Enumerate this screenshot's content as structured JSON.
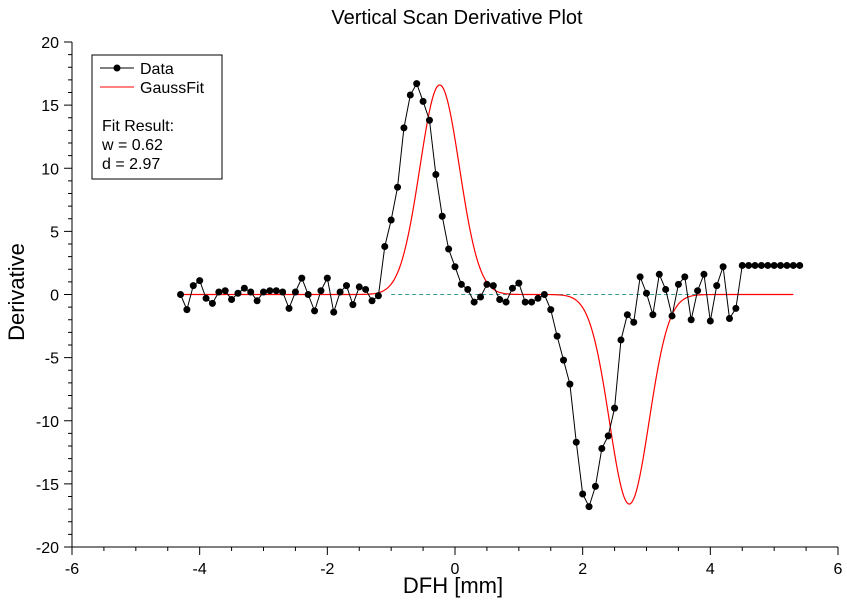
{
  "chart_data": {
    "type": "line",
    "title": "Vertical Scan Derivative Plot",
    "xlabel": "DFH [mm]",
    "ylabel": "Derivative",
    "xlim": [
      -6,
      6
    ],
    "ylim": [
      -20,
      20
    ],
    "xticks": [
      -6,
      -4,
      -2,
      0,
      2,
      4,
      6
    ],
    "yticks": [
      20,
      15,
      10,
      5,
      0,
      -5,
      -10,
      -15,
      -20
    ],
    "xtick_labels": [
      "-6",
      "-4",
      "-2",
      "0",
      "2",
      "4",
      "6"
    ],
    "ytick_labels": [
      "20",
      "15",
      "10",
      "5",
      "0",
      "-5",
      "-10",
      "-15",
      "-20"
    ],
    "grid": false,
    "legend_position": "top-left",
    "baseline": {
      "y": 0,
      "x_from": -1,
      "x_to": 5.3,
      "color": "#3a9a9a",
      "style": "dashed"
    },
    "series": [
      {
        "name": "Data",
        "color": "#000000",
        "marker": "circle",
        "x": [
          -4.3,
          -4.2,
          -4.1,
          -4.0,
          -3.9,
          -3.8,
          -3.7,
          -3.6,
          -3.5,
          -3.4,
          -3.3,
          -3.2,
          -3.1,
          -3.0,
          -2.9,
          -2.8,
          -2.7,
          -2.6,
          -2.5,
          -2.4,
          -2.3,
          -2.2,
          -2.1,
          -2.0,
          -1.9,
          -1.8,
          -1.7,
          -1.6,
          -1.5,
          -1.4,
          -1.3,
          -1.2,
          -1.1,
          -1.0,
          -0.9,
          -0.8,
          -0.7,
          -0.6,
          -0.5,
          -0.4,
          -0.3,
          -0.2,
          -0.1,
          0.0,
          0.1,
          0.2,
          0.3,
          0.4,
          0.5,
          0.6,
          0.7,
          0.8,
          0.9,
          1.0,
          1.1,
          1.2,
          1.3,
          1.4,
          1.5,
          1.6,
          1.7,
          1.8,
          1.9,
          2.0,
          2.1,
          2.2,
          2.3,
          2.4,
          2.5,
          2.6,
          2.7,
          2.8,
          2.9,
          3.0,
          3.1,
          3.2,
          3.3,
          3.4,
          3.5,
          3.6,
          3.7,
          3.8,
          3.9,
          4.0,
          4.1,
          4.2,
          4.3,
          4.4,
          4.5,
          4.6,
          4.7,
          4.8,
          4.9,
          5.0,
          5.1,
          5.2,
          5.3,
          5.4
        ],
        "y": [
          0.0,
          -1.2,
          0.7,
          1.1,
          -0.3,
          -0.7,
          0.2,
          0.3,
          -0.4,
          0.1,
          0.5,
          0.2,
          -0.5,
          0.2,
          0.3,
          0.3,
          0.2,
          -1.1,
          0.2,
          1.3,
          0.0,
          -1.3,
          0.3,
          1.3,
          -1.4,
          0.2,
          0.7,
          -0.8,
          0.6,
          0.4,
          -0.5,
          -0.1,
          3.8,
          5.9,
          8.5,
          13.2,
          15.8,
          16.7,
          15.3,
          13.8,
          9.5,
          6.2,
          3.6,
          2.2,
          0.8,
          0.4,
          -0.6,
          -0.2,
          0.8,
          0.7,
          -0.4,
          -0.6,
          0.5,
          0.9,
          -0.6,
          -0.6,
          -0.3,
          0.0,
          -1.2,
          -3.3,
          -5.2,
          -7.1,
          -11.7,
          -15.8,
          -16.8,
          -15.2,
          -12.2,
          -11.2,
          -9.0,
          -3.6,
          -1.6,
          -2.2,
          1.4,
          0.1,
          -1.6,
          1.6,
          0.4,
          -1.7,
          0.8,
          1.4,
          -2.0,
          0.3,
          1.6,
          -2.1,
          0.7,
          2.2,
          -1.9,
          -1.1,
          2.3,
          2.3,
          2.3,
          2.3,
          2.3,
          2.3,
          2.3,
          2.3,
          2.3,
          2.3
        ]
      },
      {
        "name": "GaussFit",
        "color": "#ff0000",
        "marker": "none",
        "fit": {
          "w": 0.62,
          "d": 2.97,
          "center1": -0.24,
          "amp1": 16.6,
          "center2": 2.73,
          "amp2": -16.6,
          "sigma": 0.31,
          "x_from": -4.3,
          "x_to": 5.3
        }
      }
    ],
    "annotations": {
      "fit_result_label": "Fit Result:",
      "w_text": "w = 0.62",
      "d_text": "d = 2.97"
    }
  }
}
